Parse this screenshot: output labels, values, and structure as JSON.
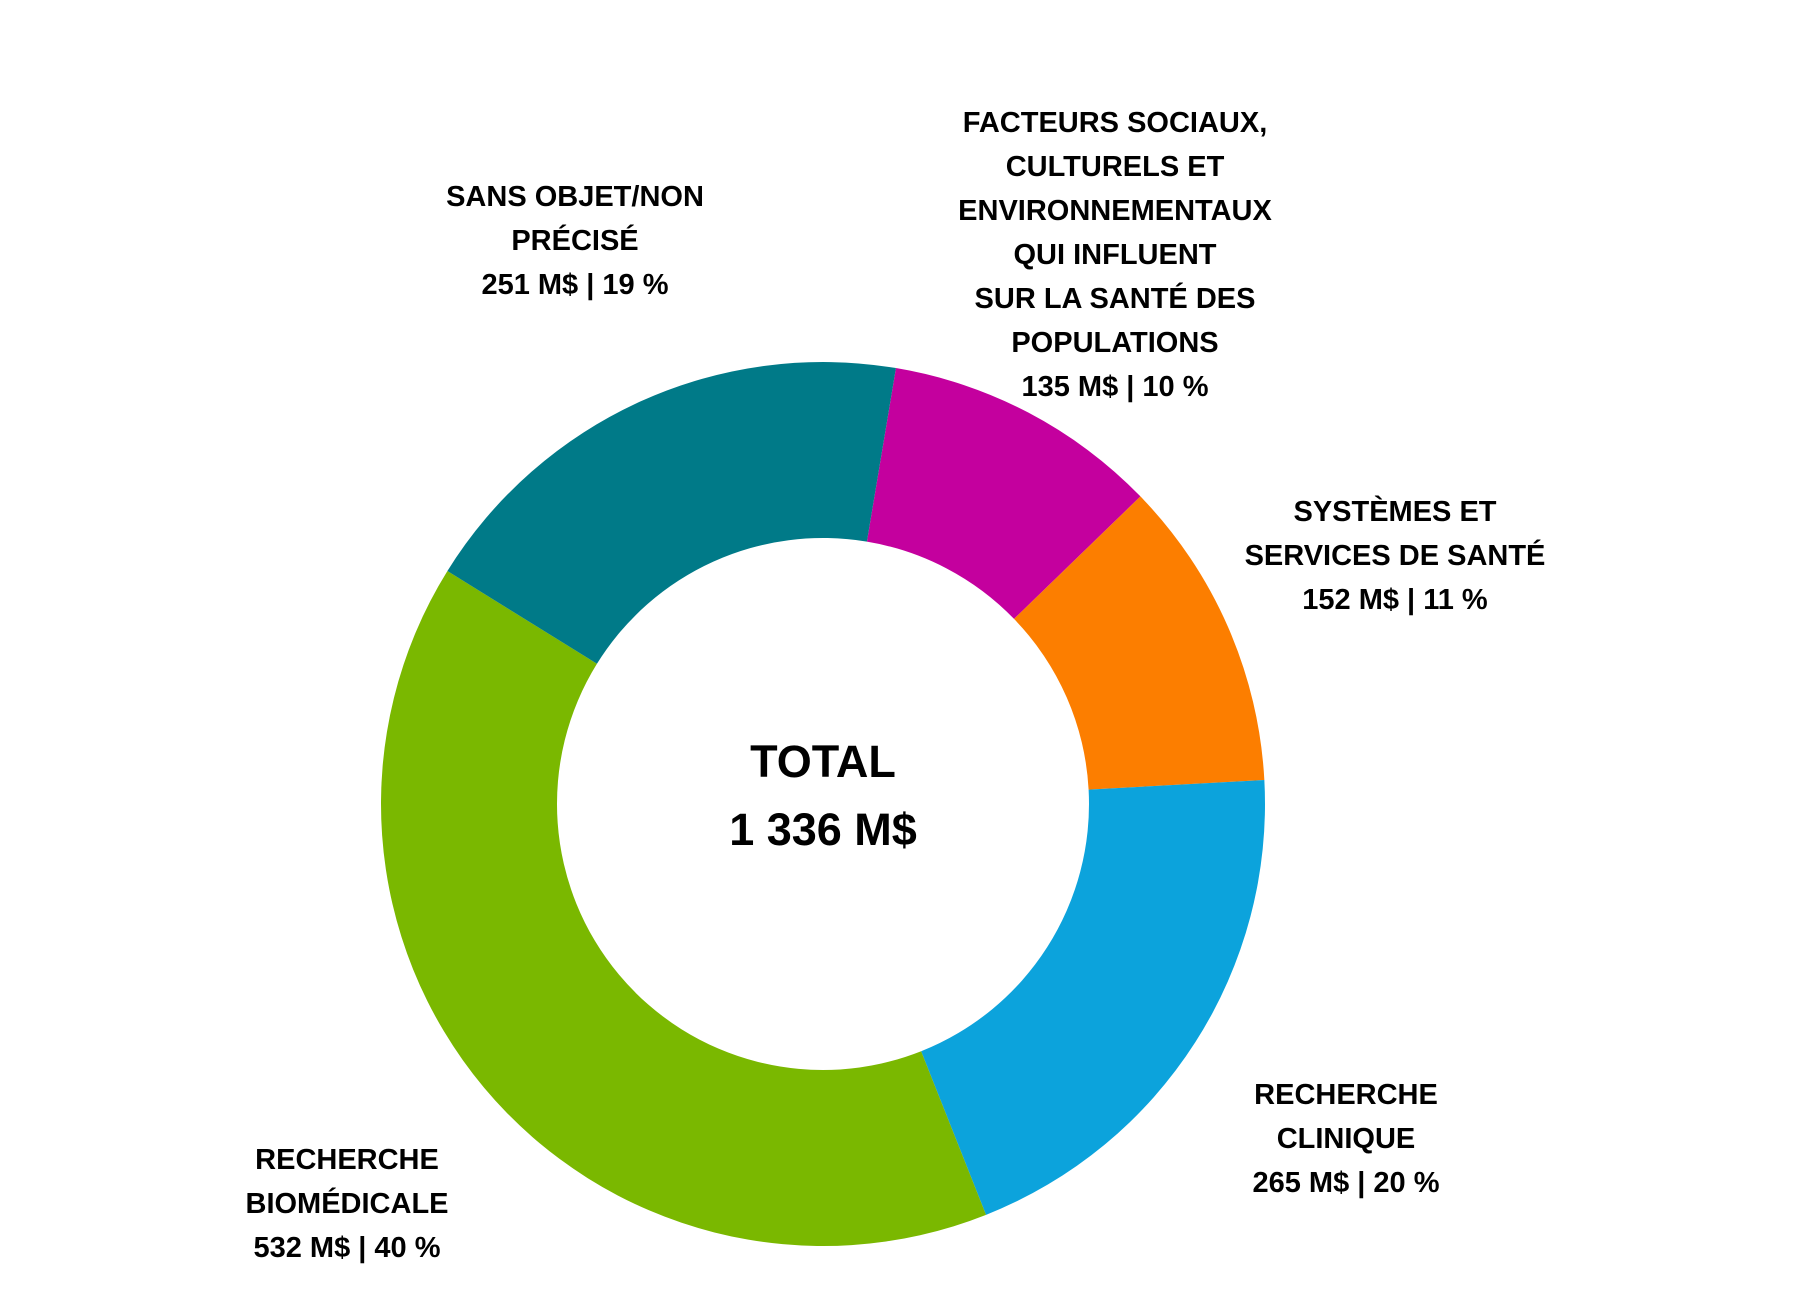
{
  "chart_data": {
    "type": "pie",
    "subtype": "donut",
    "title": "",
    "unit": "M$",
    "total": 1336,
    "center_label": {
      "title": "TOTAL",
      "value": "1 336 M$"
    },
    "legend_position": "around",
    "start_angle_deg": 9.5,
    "clockwise": true,
    "slices": [
      {
        "name": "facteurs-sociaux",
        "label_lines": [
          "FACTEURS SOCIAUX,",
          "CULTURELS ET",
          "ENVIRONNEMENTAUX",
          "QUI INFLUENT",
          "SUR LA SANTÉ DES",
          "POPULATIONS"
        ],
        "value": 135,
        "percent": 10,
        "value_text": "135 M$ | 10 %",
        "color": "#C4009E"
      },
      {
        "name": "systemes-services-sante",
        "label_lines": [
          "SYSTÈMES ET",
          "SERVICES DE SANTÉ"
        ],
        "value": 152,
        "percent": 11,
        "value_text": "152 M$ | 11 %",
        "color": "#FC7E00"
      },
      {
        "name": "recherche-clinique",
        "label_lines": [
          "RECHERCHE",
          "CLINIQUE"
        ],
        "value": 265,
        "percent": 20,
        "value_text": "265 M$ | 20 %",
        "color": "#0CA3DC"
      },
      {
        "name": "recherche-biomedicale",
        "label_lines": [
          "RECHERCHE",
          "BIOMÉDICALE"
        ],
        "value": 532,
        "percent": 40,
        "value_text": "532 M$ | 40 %",
        "color": "#7AB800"
      },
      {
        "name": "sans-objet-non-precise",
        "label_lines": [
          "SANS OBJET/NON",
          "PRÉCISÉ"
        ],
        "value": 251,
        "percent": 19,
        "value_text": "251 M$ | 19 %",
        "color": "#007A88"
      }
    ]
  }
}
